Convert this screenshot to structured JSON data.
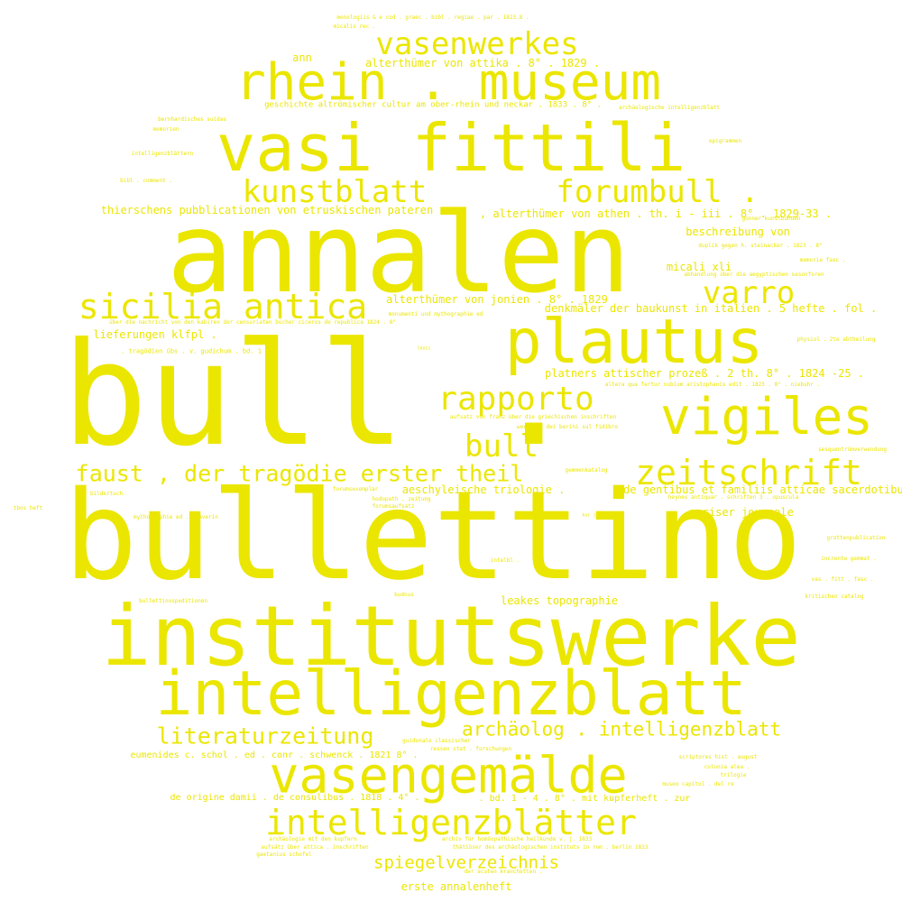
{
  "color": "#ebe600",
  "words": [
    "bull .",
    "bullettino",
    "annalen",
    "institutswerke",
    "intelligenzblatt",
    "vasi fittili",
    "vasengemälde",
    "rhein . museum",
    "plautus",
    "vigiles",
    "intelligenzblätter",
    "vasenwerkes",
    "sicilia antica",
    "rapporto",
    "zeitschrift",
    "kunstblatt",
    "forumbull .",
    "varro",
    "bull",
    "faust , der tragödie erster theil",
    "literaturzeitung",
    "archäolog . intelligenzblatt",
    "spiegelverzeichnis",
    "alterthümer von attika . 8° . 1829 .",
    "ann",
    "thierschens pubblicationen von etruskischen pateren",
    ", alterthümer von athen . th. i - iii . 8° . 1829-33 .",
    "beschreibung von",
    "micali xli",
    "alterthümer von jonien . 8° . 1829",
    "denkmäler der baukunst in italien . 5 hefte . fol .",
    "lieferungen klfpl .",
    "platners attischer prozeß . 2 th. 8° . 1824 -25 .",
    "aeschyleische triologie .",
    "de gentibus et familiis atticae sacerdotibus",
    "pariser journale",
    "leakes topographie",
    "eumenides c. schol . ed . conr . schwenck . 1821 8° .",
    "de origine damii . de consulibus . 1818 . 4° .",
    ". bd. 1 - 4 . 8° . mit kupferheft . zur",
    "erste annalenheft",
    "geschichte altrömischer cultur am ober-rhein und neckar . 1833 . 8° .",
    "menologiis & e cod . graec . bibl . regiae . par . 1823.8 .",
    "micalis rec .",
    "archäologische intelligenzblatt",
    "bernhardisches suidas",
    "memorien",
    "intelligenzblättern",
    "bibl . comment .",
    "epigrammen",
    "gonner kunstbunden",
    "duplik gegen h. steinacker . 1823 . 8°",
    "memorie fasc .",
    "abhandlung über die aegyptischen sesonforen",
    "monumenti und mythographie ed",
    "über die nachricht von den kabiren der censuriaten bücher ciceros de republica 1824 . 8°",
    ". tragödien übs . v. gudichum . bd. 1",
    "lexic",
    "physiol . 2te abtheilung",
    "altera qua fertur nubium aristophanis edit . 1823 . 8° . niebuhr .",
    "aufsatz von franz über die griechischen inschriften",
    "werichen dei berini sul fidibro",
    "heynes antiquar . schriften 3 . opuscula",
    "sesquentrümverwendung",
    "gemmenkatalog",
    "forumsexemplar",
    "hodopath . zeitung",
    "forumsaufsatz",
    "bildertuch",
    "mythographie ed . staverin",
    "tbos heft",
    "kor journales",
    "grottenpublication",
    "intelbl .",
    "incrente gemmat .",
    "vas . fitt . fasc .",
    "kudnus",
    "bullettinospeditionen",
    "kritischen catalog",
    "guidonale classischer",
    "ressen stat . forschungen",
    "scriptores hist . august",
    "colonia alea .",
    "trilogie",
    "museo capitol . del re",
    "archäologie mit den kupfern",
    "archiv für homöopathische heilkunde v. j. 1833",
    "aufsätz über attica . inschriften",
    "thätiöser des archäologischen instituts in rom . berlin 1833",
    "gaetanius schofel",
    "der acuten kranchetten ."
  ]
}
